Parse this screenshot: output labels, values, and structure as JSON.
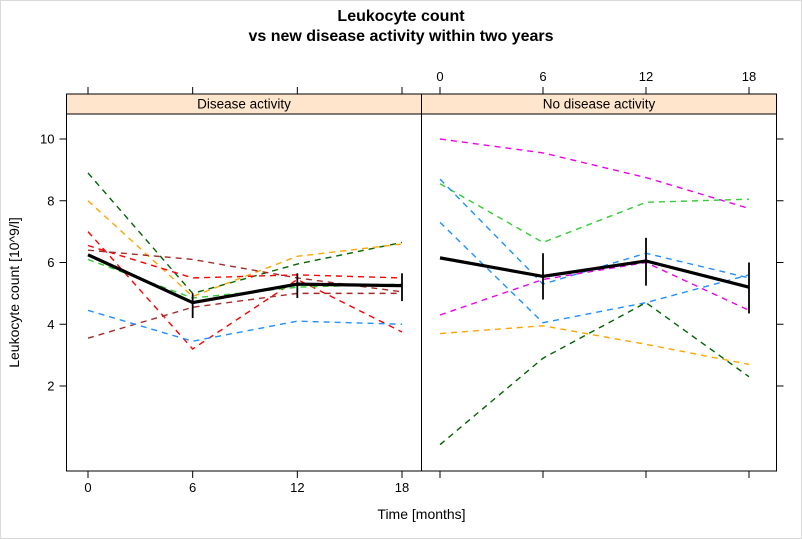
{
  "figure": {
    "title_line1": "Leukocyte count",
    "title_line2": "vs new disease activity within two years"
  },
  "chart_data": {
    "type": "line",
    "title": "Leukocyte count vs new disease activity within two years",
    "xlabel": "Time [months]",
    "ylabel": "Leukocyte count [10^9/l]",
    "x_months": [
      0,
      6,
      12,
      18
    ],
    "x_tick_labels": [
      "0",
      "6",
      "12",
      "18"
    ],
    "y_ticks": [
      2,
      4,
      6,
      8,
      10
    ],
    "ylim": [
      -0.75,
      10.85
    ],
    "grid": false,
    "legend": "none",
    "individual_line_style": "dashed",
    "mean_line_style": "solid bold black with vertical error bars at months 6, 12, 18",
    "strip_fill": "#FFE5CC",
    "mean_color": "#000000",
    "panels": [
      {
        "strip_label": "Disease activity",
        "axis_labels_shown": {
          "bottom": true,
          "top": false,
          "left": true,
          "right": false
        },
        "individuals": [
          {
            "color": "#006400",
            "color_name": "dark-green",
            "values": [
              8.9,
              5.0,
              5.95,
              6.65
            ]
          },
          {
            "color": "#FFA500",
            "color_name": "orange",
            "values": [
              8.0,
              4.9,
              6.2,
              6.6
            ]
          },
          {
            "color": "#FF0000",
            "color_name": "red",
            "values": [
              7.0,
              3.2,
              5.45,
              3.75
            ]
          },
          {
            "color": "#FF0000",
            "color_name": "red",
            "values": [
              6.55,
              5.5,
              5.6,
              5.5
            ]
          },
          {
            "color": "#A52A2A",
            "color_name": "brown",
            "values": [
              6.4,
              6.1,
              5.5,
              5.05
            ]
          },
          {
            "color": "#33CC33",
            "color_name": "green",
            "values": [
              6.1,
              4.85,
              5.2,
              5.3
            ]
          },
          {
            "color": "#A52A2A",
            "color_name": "brown",
            "values": [
              3.55,
              4.55,
              5.0,
              5.0
            ]
          },
          {
            "color": "#1E90FF",
            "color_name": "blue",
            "values": [
              4.45,
              3.45,
              4.1,
              4.0
            ]
          }
        ],
        "mean": {
          "values": [
            6.25,
            4.7,
            5.3,
            5.25
          ],
          "error_low": [
            null,
            4.2,
            4.85,
            4.75
          ],
          "error_high": [
            null,
            5.0,
            5.65,
            5.65
          ]
        }
      },
      {
        "strip_label": "No disease activity",
        "axis_labels_shown": {
          "bottom": false,
          "top": true,
          "left": false,
          "right": false
        },
        "individuals": [
          {
            "color": "#EE00EE",
            "color_name": "magenta",
            "values": [
              10.0,
              9.55,
              8.75,
              7.75
            ]
          },
          {
            "color": "#33CC33",
            "color_name": "green",
            "values": [
              8.55,
              6.65,
              7.95,
              8.05
            ]
          },
          {
            "color": "#1E90FF",
            "color_name": "blue",
            "values": [
              8.7,
              5.3,
              6.3,
              5.5
            ]
          },
          {
            "color": "#1E90FF",
            "color_name": "blue",
            "values": [
              7.3,
              4.05,
              4.7,
              5.6
            ]
          },
          {
            "color": "#EE00EE",
            "color_name": "magenta",
            "values": [
              4.3,
              5.45,
              6.0,
              4.45
            ]
          },
          {
            "color": "#FFA500",
            "color_name": "orange",
            "values": [
              3.7,
              3.95,
              3.35,
              2.7
            ]
          },
          {
            "color": "#006400",
            "color_name": "dark-green",
            "values": [
              0.1,
              2.9,
              4.7,
              2.3
            ]
          }
        ],
        "mean": {
          "values": [
            6.15,
            5.55,
            6.05,
            5.2
          ],
          "error_low": [
            null,
            4.8,
            5.25,
            4.35
          ],
          "error_high": [
            null,
            6.3,
            6.8,
            6.0
          ]
        }
      }
    ]
  }
}
